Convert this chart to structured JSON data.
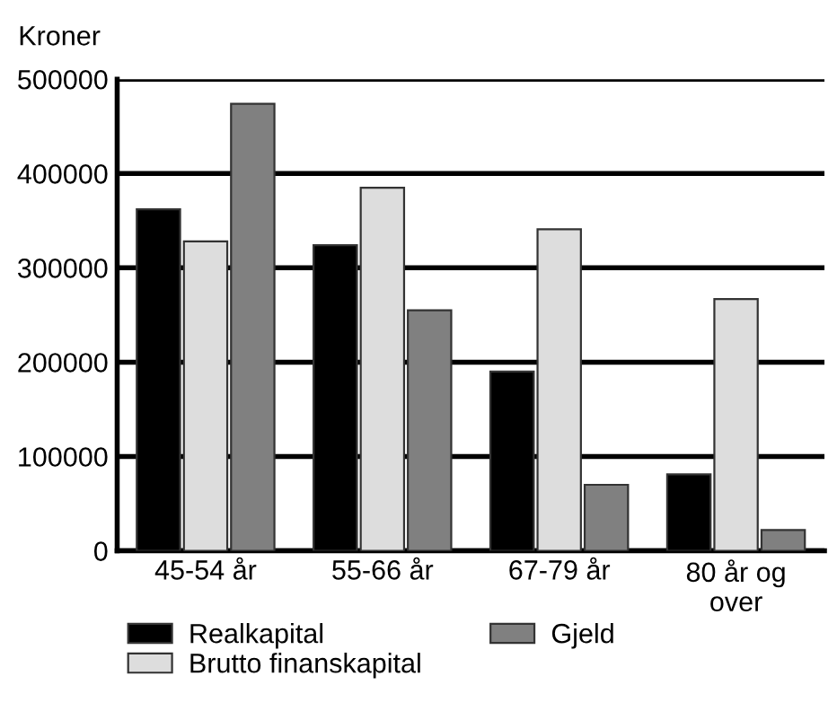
{
  "chart_data": {
    "type": "bar",
    "ylabel": "Kroner",
    "categories": [
      "45-54 år",
      "55-66 år",
      "67-79 år",
      "80 år og over"
    ],
    "series": [
      {
        "name": "Realkapital",
        "color": "#000000",
        "values": [
          362000,
          324000,
          190000,
          81000
        ]
      },
      {
        "name": "Brutto finanskapital",
        "color": "#dddddd",
        "values": [
          328000,
          385000,
          341000,
          267000
        ]
      },
      {
        "name": "Gjeld",
        "color": "#808080",
        "values": [
          474000,
          255000,
          70000,
          22000
        ]
      }
    ],
    "ylim": [
      0,
      500000
    ],
    "yticks": [
      0,
      100000,
      200000,
      300000,
      400000,
      500000
    ],
    "grid": "y",
    "legend": "bottom"
  }
}
